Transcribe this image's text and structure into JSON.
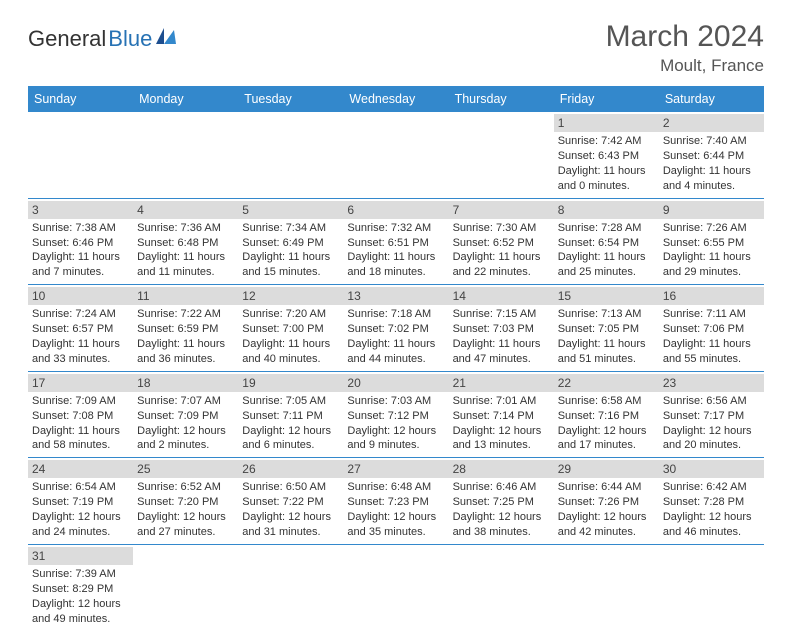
{
  "logo": {
    "main": "General",
    "accent": "Blue"
  },
  "header": {
    "month_title": "March 2024",
    "location": "Moult, France"
  },
  "weekdays": [
    "Sunday",
    "Monday",
    "Tuesday",
    "Wednesday",
    "Thursday",
    "Friday",
    "Saturday"
  ],
  "colors": {
    "header_bar": "#3388cc",
    "day_band": "#dcdcdc",
    "row_border": "#3388cc",
    "logo_accent": "#2772b4"
  },
  "weeks": [
    [
      {
        "num": "",
        "lines": ""
      },
      {
        "num": "",
        "lines": ""
      },
      {
        "num": "",
        "lines": ""
      },
      {
        "num": "",
        "lines": ""
      },
      {
        "num": "",
        "lines": ""
      },
      {
        "num": "1",
        "lines": "Sunrise: 7:42 AM\nSunset: 6:43 PM\nDaylight: 11 hours and 0 minutes."
      },
      {
        "num": "2",
        "lines": "Sunrise: 7:40 AM\nSunset: 6:44 PM\nDaylight: 11 hours and 4 minutes."
      }
    ],
    [
      {
        "num": "3",
        "lines": "Sunrise: 7:38 AM\nSunset: 6:46 PM\nDaylight: 11 hours and 7 minutes."
      },
      {
        "num": "4",
        "lines": "Sunrise: 7:36 AM\nSunset: 6:48 PM\nDaylight: 11 hours and 11 minutes."
      },
      {
        "num": "5",
        "lines": "Sunrise: 7:34 AM\nSunset: 6:49 PM\nDaylight: 11 hours and 15 minutes."
      },
      {
        "num": "6",
        "lines": "Sunrise: 7:32 AM\nSunset: 6:51 PM\nDaylight: 11 hours and 18 minutes."
      },
      {
        "num": "7",
        "lines": "Sunrise: 7:30 AM\nSunset: 6:52 PM\nDaylight: 11 hours and 22 minutes."
      },
      {
        "num": "8",
        "lines": "Sunrise: 7:28 AM\nSunset: 6:54 PM\nDaylight: 11 hours and 25 minutes."
      },
      {
        "num": "9",
        "lines": "Sunrise: 7:26 AM\nSunset: 6:55 PM\nDaylight: 11 hours and 29 minutes."
      }
    ],
    [
      {
        "num": "10",
        "lines": "Sunrise: 7:24 AM\nSunset: 6:57 PM\nDaylight: 11 hours and 33 minutes."
      },
      {
        "num": "11",
        "lines": "Sunrise: 7:22 AM\nSunset: 6:59 PM\nDaylight: 11 hours and 36 minutes."
      },
      {
        "num": "12",
        "lines": "Sunrise: 7:20 AM\nSunset: 7:00 PM\nDaylight: 11 hours and 40 minutes."
      },
      {
        "num": "13",
        "lines": "Sunrise: 7:18 AM\nSunset: 7:02 PM\nDaylight: 11 hours and 44 minutes."
      },
      {
        "num": "14",
        "lines": "Sunrise: 7:15 AM\nSunset: 7:03 PM\nDaylight: 11 hours and 47 minutes."
      },
      {
        "num": "15",
        "lines": "Sunrise: 7:13 AM\nSunset: 7:05 PM\nDaylight: 11 hours and 51 minutes."
      },
      {
        "num": "16",
        "lines": "Sunrise: 7:11 AM\nSunset: 7:06 PM\nDaylight: 11 hours and 55 minutes."
      }
    ],
    [
      {
        "num": "17",
        "lines": "Sunrise: 7:09 AM\nSunset: 7:08 PM\nDaylight: 11 hours and 58 minutes."
      },
      {
        "num": "18",
        "lines": "Sunrise: 7:07 AM\nSunset: 7:09 PM\nDaylight: 12 hours and 2 minutes."
      },
      {
        "num": "19",
        "lines": "Sunrise: 7:05 AM\nSunset: 7:11 PM\nDaylight: 12 hours and 6 minutes."
      },
      {
        "num": "20",
        "lines": "Sunrise: 7:03 AM\nSunset: 7:12 PM\nDaylight: 12 hours and 9 minutes."
      },
      {
        "num": "21",
        "lines": "Sunrise: 7:01 AM\nSunset: 7:14 PM\nDaylight: 12 hours and 13 minutes."
      },
      {
        "num": "22",
        "lines": "Sunrise: 6:58 AM\nSunset: 7:16 PM\nDaylight: 12 hours and 17 minutes."
      },
      {
        "num": "23",
        "lines": "Sunrise: 6:56 AM\nSunset: 7:17 PM\nDaylight: 12 hours and 20 minutes."
      }
    ],
    [
      {
        "num": "24",
        "lines": "Sunrise: 6:54 AM\nSunset: 7:19 PM\nDaylight: 12 hours and 24 minutes."
      },
      {
        "num": "25",
        "lines": "Sunrise: 6:52 AM\nSunset: 7:20 PM\nDaylight: 12 hours and 27 minutes."
      },
      {
        "num": "26",
        "lines": "Sunrise: 6:50 AM\nSunset: 7:22 PM\nDaylight: 12 hours and 31 minutes."
      },
      {
        "num": "27",
        "lines": "Sunrise: 6:48 AM\nSunset: 7:23 PM\nDaylight: 12 hours and 35 minutes."
      },
      {
        "num": "28",
        "lines": "Sunrise: 6:46 AM\nSunset: 7:25 PM\nDaylight: 12 hours and 38 minutes."
      },
      {
        "num": "29",
        "lines": "Sunrise: 6:44 AM\nSunset: 7:26 PM\nDaylight: 12 hours and 42 minutes."
      },
      {
        "num": "30",
        "lines": "Sunrise: 6:42 AM\nSunset: 7:28 PM\nDaylight: 12 hours and 46 minutes."
      }
    ],
    [
      {
        "num": "31",
        "lines": "Sunrise: 7:39 AM\nSunset: 8:29 PM\nDaylight: 12 hours and 49 minutes."
      },
      {
        "num": "",
        "lines": ""
      },
      {
        "num": "",
        "lines": ""
      },
      {
        "num": "",
        "lines": ""
      },
      {
        "num": "",
        "lines": ""
      },
      {
        "num": "",
        "lines": ""
      },
      {
        "num": "",
        "lines": ""
      }
    ]
  ]
}
